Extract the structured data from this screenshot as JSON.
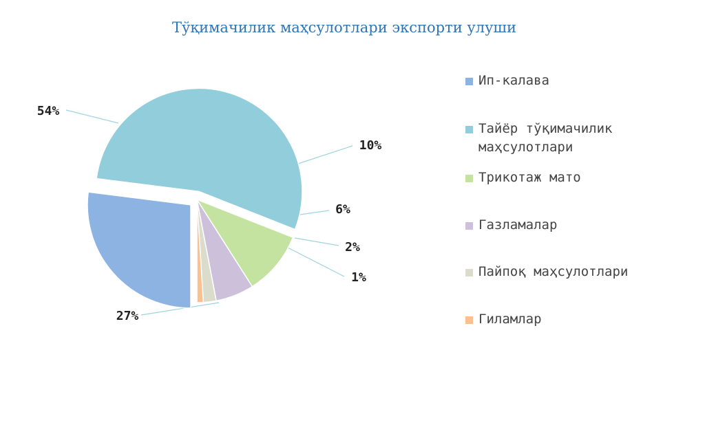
{
  "chart_data": {
    "type": "pie",
    "title": "Тўқимачилик маҳсулотлари экспорти улуши",
    "legend_position": "right",
    "slices": [
      {
        "name": "Ип-калава",
        "value": 27,
        "label": "27%",
        "color": "#8db3e2"
      },
      {
        "name": "Тайёр тўқимачилик маҳсулотлари",
        "value": 54,
        "label": "54%",
        "color": "#92cddc"
      },
      {
        "name": "Трикотаж мато",
        "value": 10,
        "label": "10%",
        "color": "#c4e3a0"
      },
      {
        "name": "Газламалар",
        "value": 6,
        "label": "6%",
        "color": "#ccc0da"
      },
      {
        "name": "Пайпоқ маҳсулотлари",
        "value": 2,
        "label": "2%",
        "color": "#dcdccc"
      },
      {
        "name": "Гиламлар",
        "value": 1,
        "label": "1%",
        "color": "#fac090"
      }
    ]
  }
}
